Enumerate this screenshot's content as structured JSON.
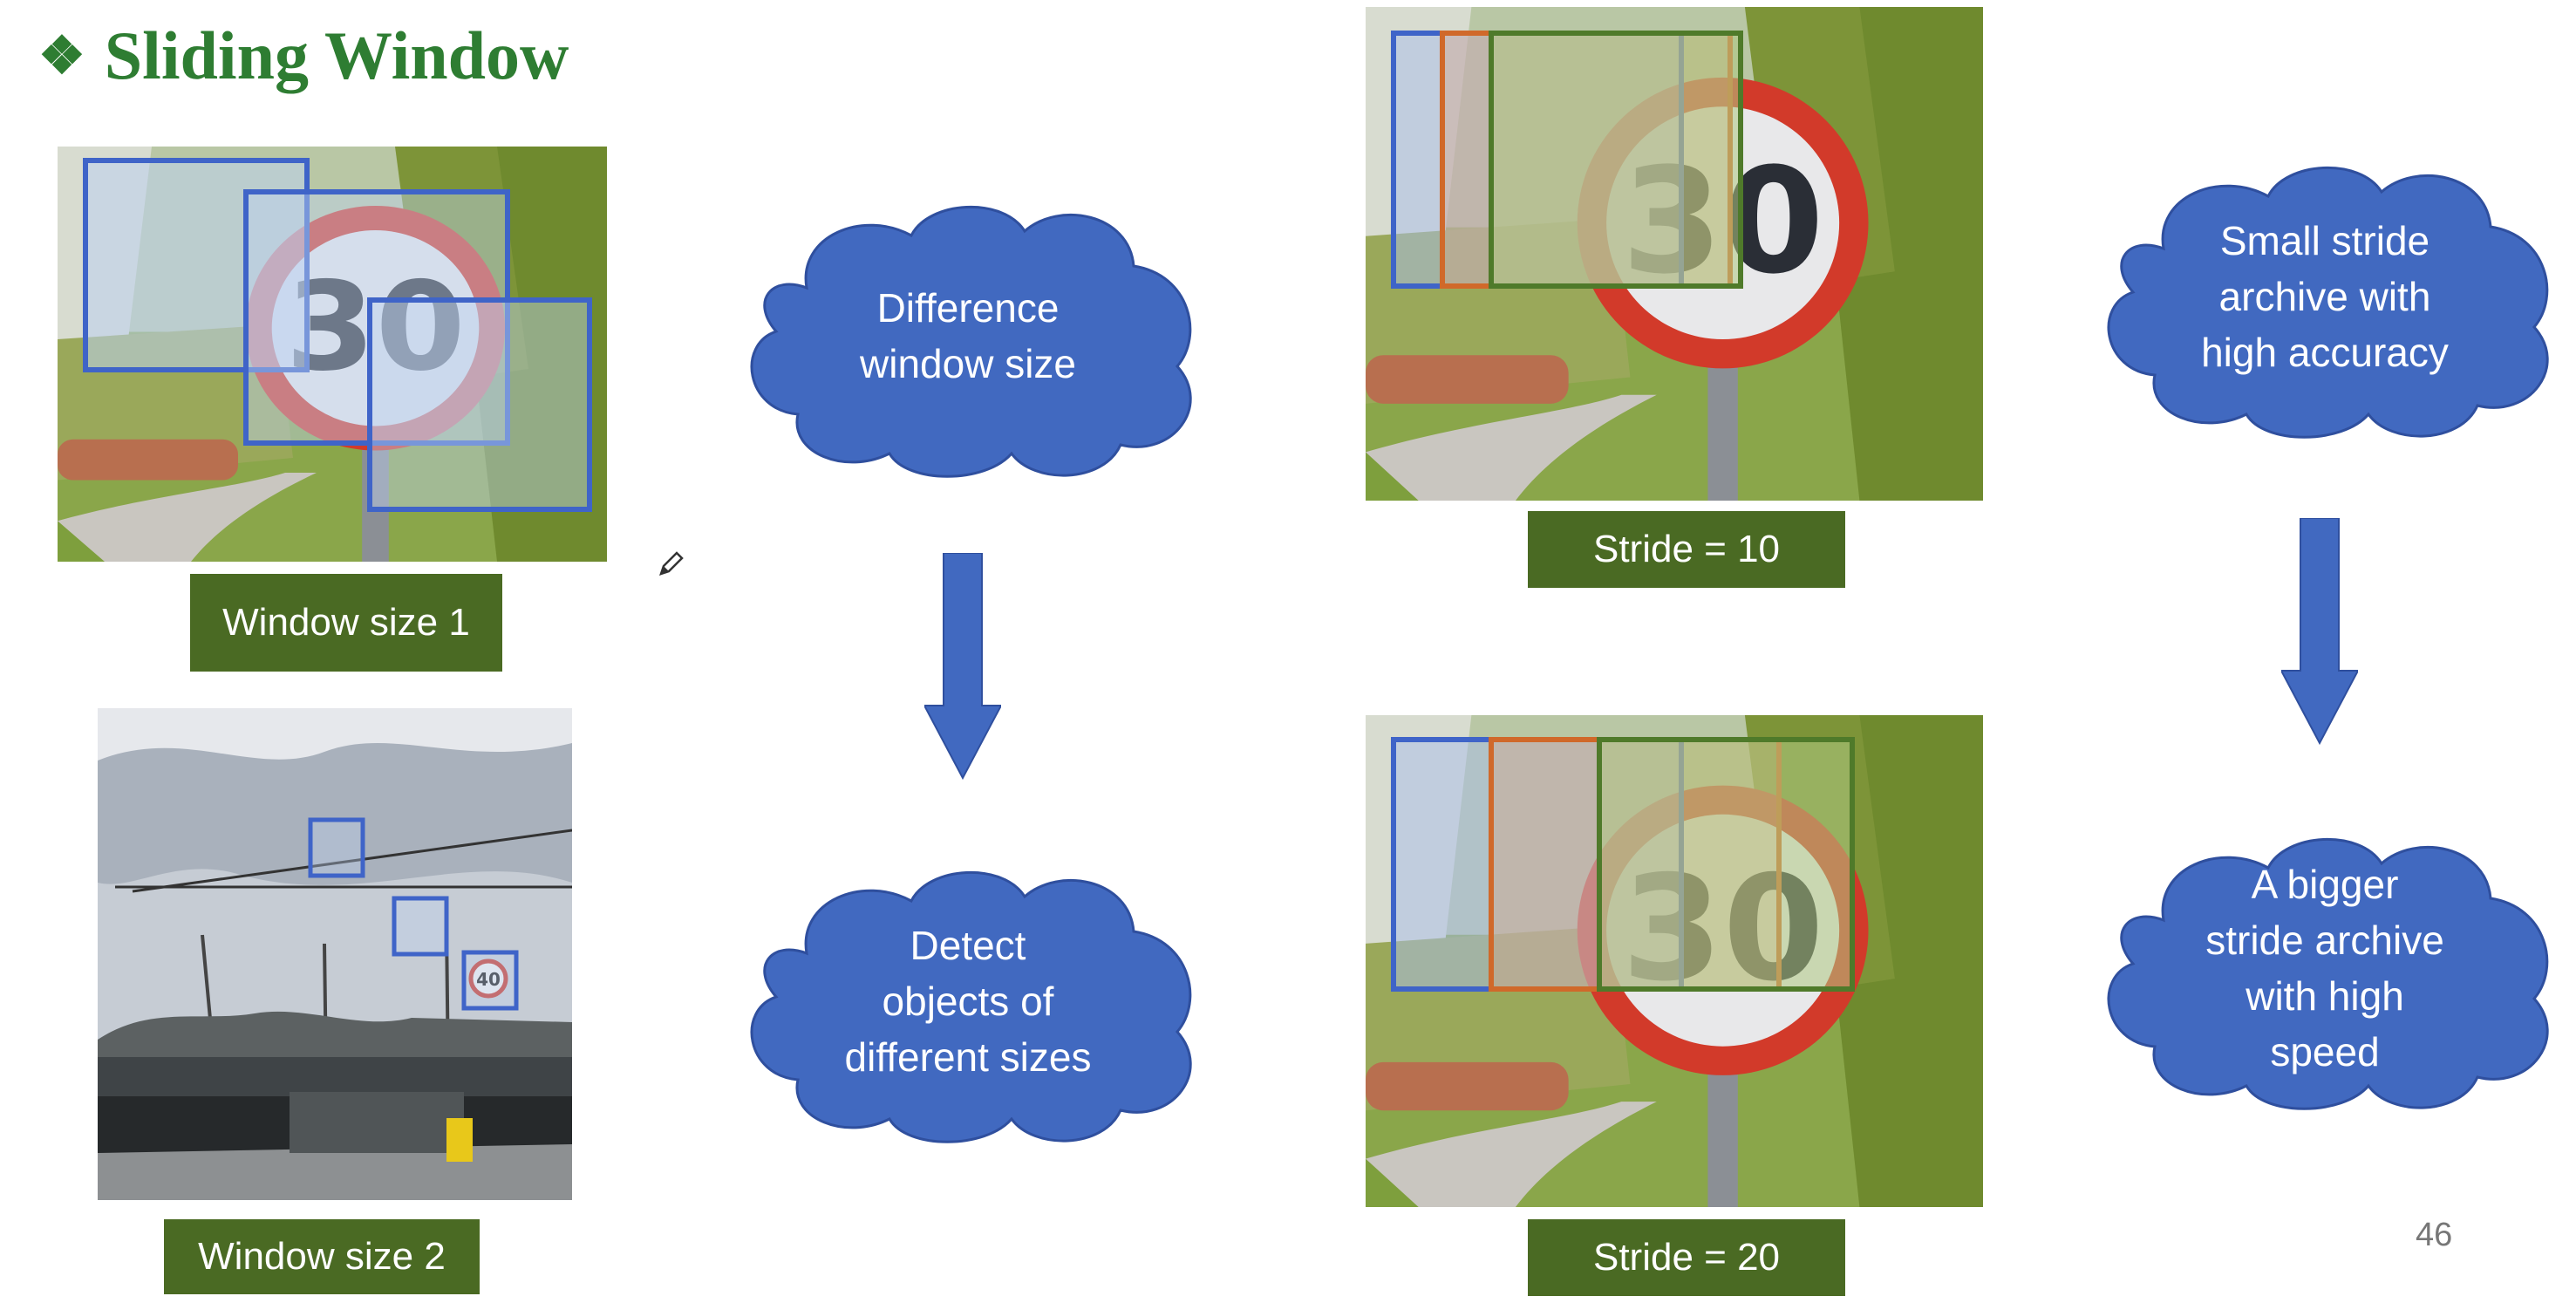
{
  "slide": {
    "title": "Sliding Window",
    "bullet_icon": "diamond-bullet-icon",
    "page_number": "46"
  },
  "labels": {
    "window_size_1": "Window size 1",
    "window_size_2": "Window size 2",
    "stride_10": "Stride = 10",
    "stride_20": "Stride = 20"
  },
  "clouds": {
    "difference_window_size": [
      "Difference",
      "window size"
    ],
    "detect_objects": [
      "Detect",
      "objects of",
      "different sizes"
    ],
    "small_stride": [
      "Small stride",
      "archive with",
      "high accuracy"
    ],
    "bigger_stride": [
      "A bigger",
      "stride archive",
      "with high",
      "speed"
    ]
  },
  "sign": {
    "speed_limit": "30",
    "small_sign": "40"
  },
  "colors": {
    "title_green": "#2e7d32",
    "label_green": "#4a6a23",
    "cloud_blue": "#4169c0",
    "window_blue": "#3f64c8",
    "window_orange": "#d0692a",
    "window_green": "#4f7a2a"
  }
}
